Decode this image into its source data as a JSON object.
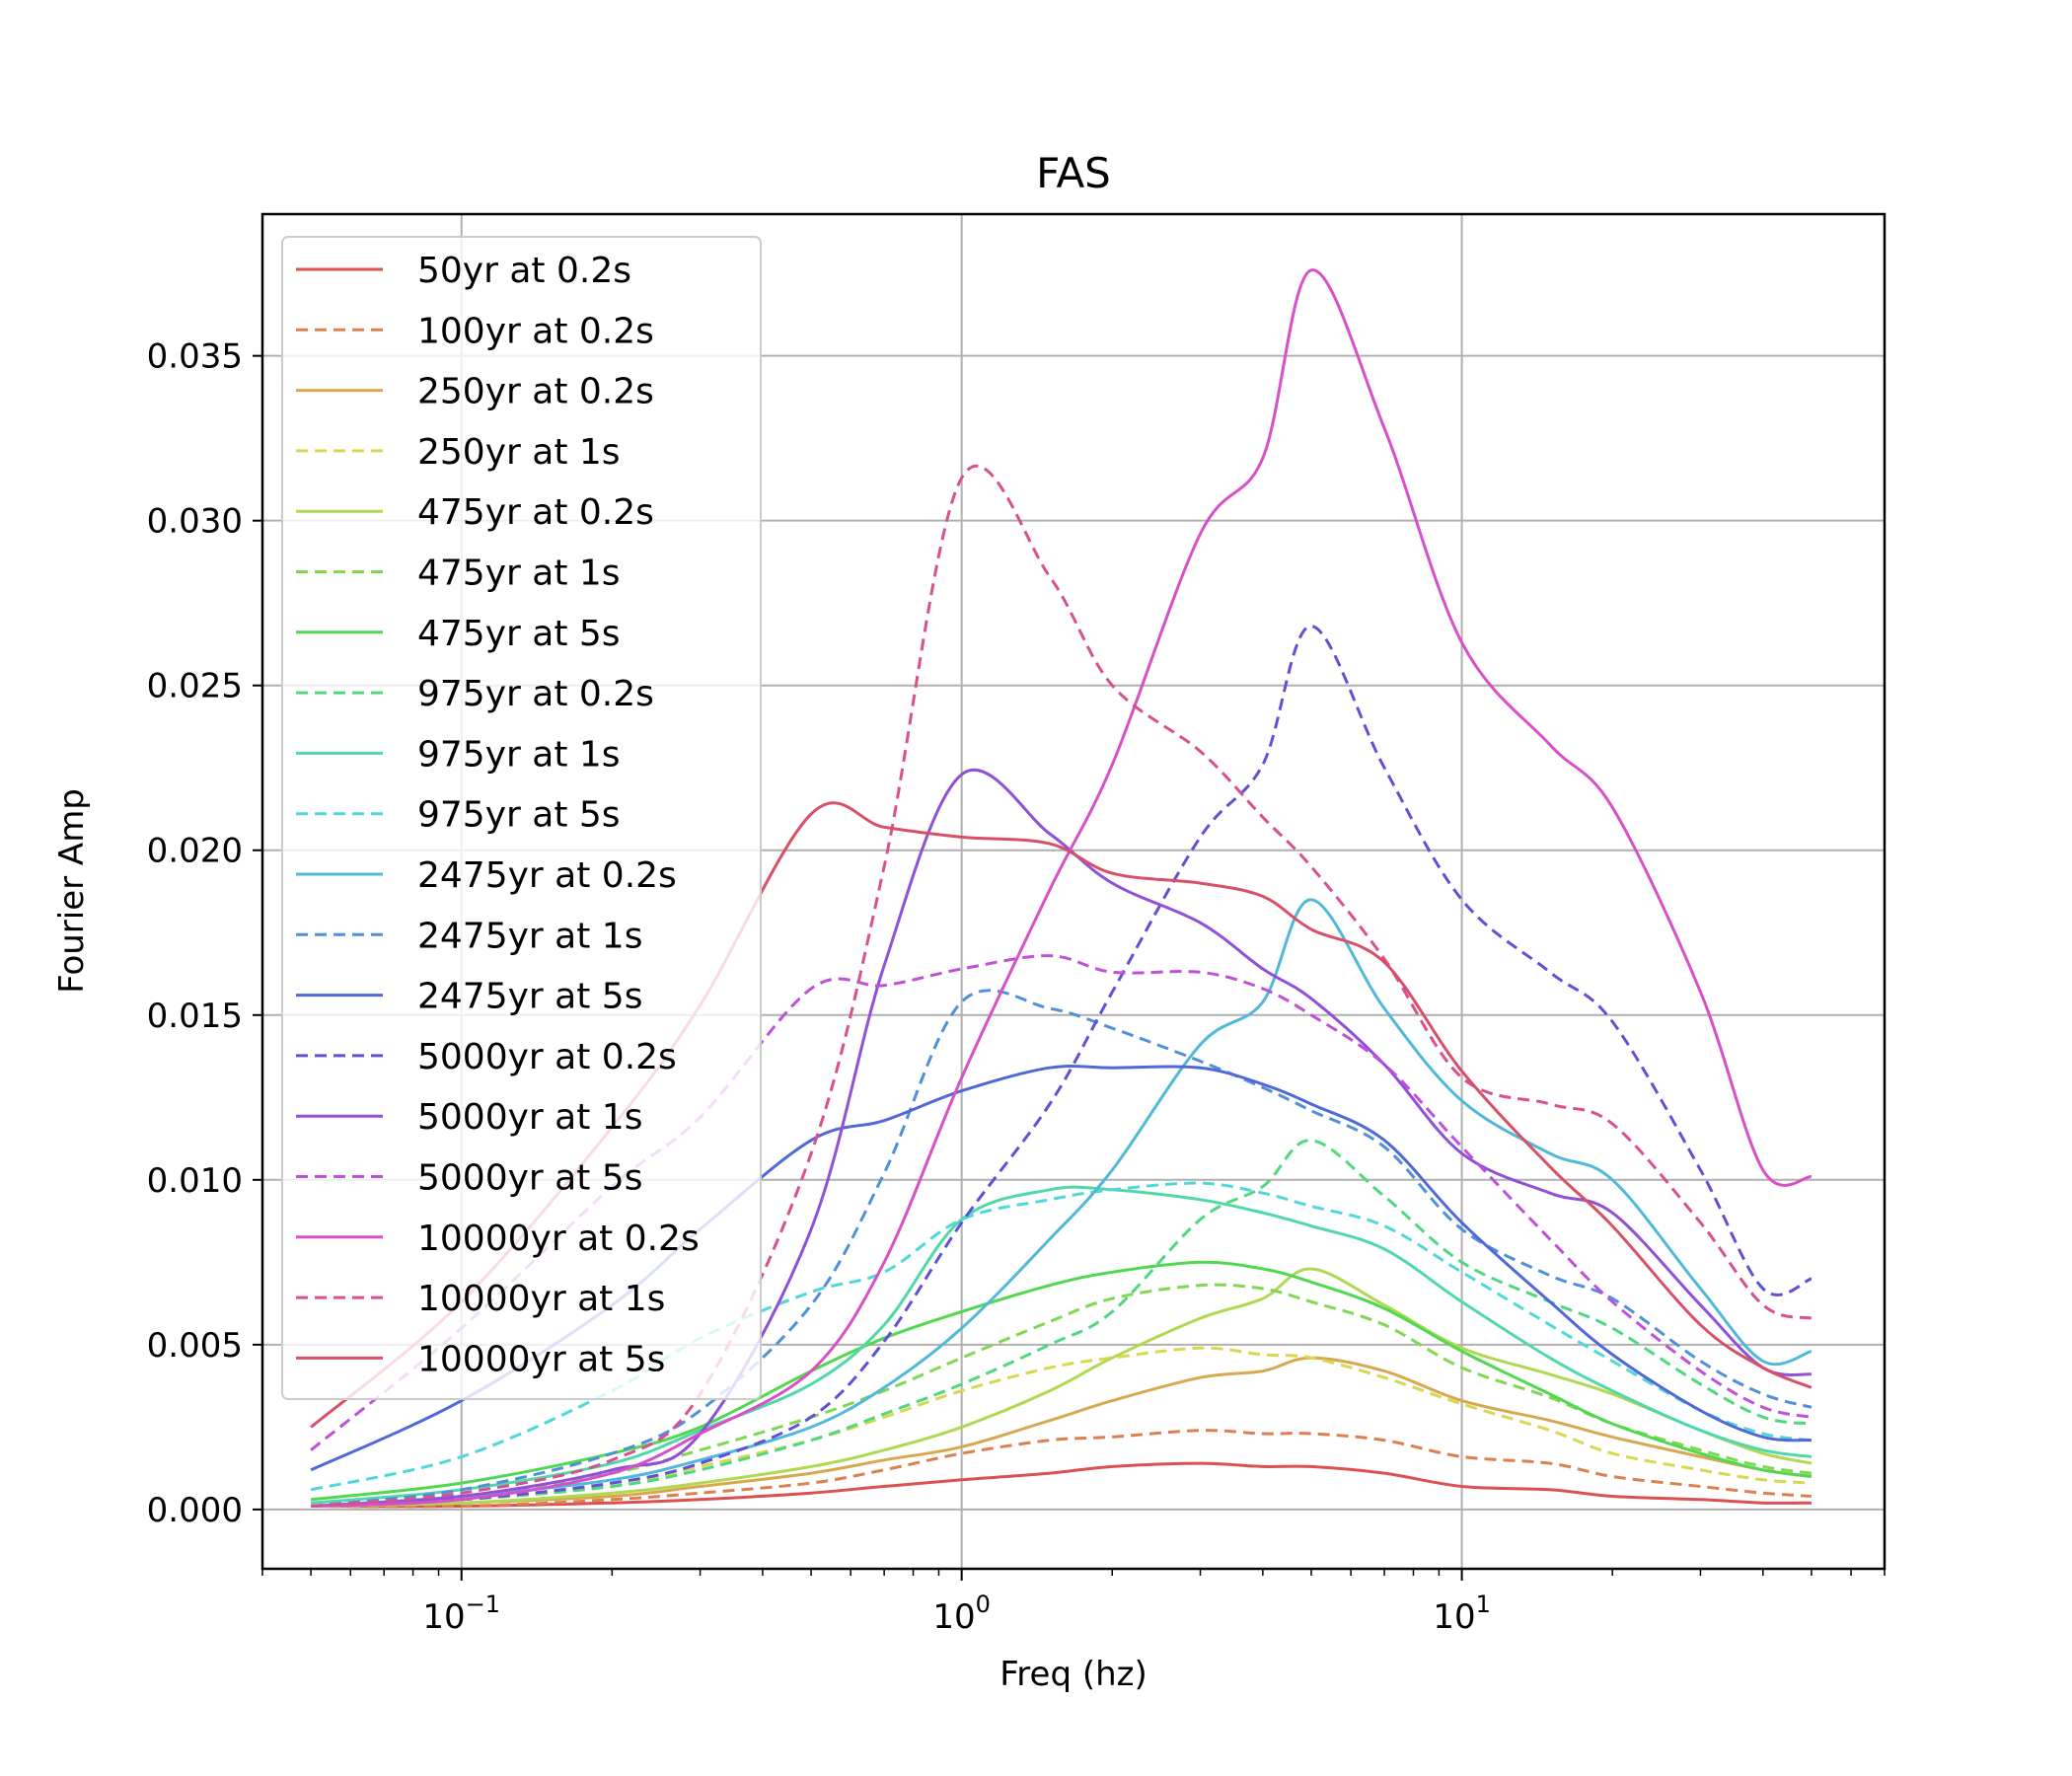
{
  "chart_data": {
    "type": "line",
    "title": "FAS",
    "xlabel": "Freq (hz)",
    "ylabel": "Fourier Amp",
    "xscale": "log",
    "xlim": [
      0.04,
      70
    ],
    "ylim": [
      -0.0018,
      0.0393
    ],
    "grid": true,
    "legend_position": "upper-left",
    "x_ticks": [
      {
        "value": 0.1,
        "base": "10",
        "exp": "−1"
      },
      {
        "value": 1,
        "base": "10",
        "exp": "0"
      },
      {
        "value": 10,
        "base": "10",
        "exp": "1"
      }
    ],
    "y_ticks": [
      {
        "value": 0,
        "label": "0.000"
      },
      {
        "value": 0.005,
        "label": "0.005"
      },
      {
        "value": 0.01,
        "label": "0.010"
      },
      {
        "value": 0.015,
        "label": "0.015"
      },
      {
        "value": 0.02,
        "label": "0.020"
      },
      {
        "value": 0.025,
        "label": "0.025"
      },
      {
        "value": 0.03,
        "label": "0.030"
      },
      {
        "value": 0.035,
        "label": "0.035"
      }
    ],
    "x": [
      0.05,
      0.1,
      0.2,
      0.3,
      0.5,
      0.7,
      1,
      1.5,
      2,
      3,
      4,
      5,
      7,
      10,
      15,
      20,
      30,
      40,
      50
    ],
    "series": [
      {
        "name": "50yr at 0.2s",
        "color": "#dc5050",
        "dash": false,
        "values": [
          0.0001,
          0.0001,
          0.0002,
          0.0003,
          0.0005,
          0.0007,
          0.0009,
          0.0011,
          0.0013,
          0.0014,
          0.0013,
          0.0013,
          0.0011,
          0.0007,
          0.0006,
          0.0004,
          0.0003,
          0.0002,
          0.0002
        ]
      },
      {
        "name": "100yr at 0.2s",
        "color": "#dc8050",
        "dash": true,
        "values": [
          0.0001,
          0.0001,
          0.0003,
          0.0005,
          0.0008,
          0.0012,
          0.0017,
          0.0021,
          0.0022,
          0.0024,
          0.0023,
          0.0023,
          0.0021,
          0.0016,
          0.0014,
          0.001,
          0.0007,
          0.0005,
          0.0004
        ]
      },
      {
        "name": "250yr at 0.2s",
        "color": "#d8a850",
        "dash": false,
        "values": [
          0.0001,
          0.0002,
          0.0004,
          0.0007,
          0.0011,
          0.0015,
          0.0019,
          0.0027,
          0.0033,
          0.004,
          0.0042,
          0.0046,
          0.0042,
          0.0033,
          0.0027,
          0.0022,
          0.0016,
          0.0012,
          0.001
        ]
      },
      {
        "name": "250yr at 1s",
        "color": "#d8d850",
        "dash": true,
        "values": [
          0.0001,
          0.0003,
          0.0007,
          0.0013,
          0.0021,
          0.0028,
          0.0036,
          0.0043,
          0.0046,
          0.0049,
          0.0047,
          0.0046,
          0.004,
          0.0032,
          0.0024,
          0.0017,
          0.0012,
          0.0009,
          0.0008
        ]
      },
      {
        "name": "475yr at 0.2s",
        "color": "#b0d850",
        "dash": false,
        "values": [
          0.0001,
          0.0002,
          0.0005,
          0.0008,
          0.0013,
          0.0018,
          0.0025,
          0.0036,
          0.0046,
          0.0058,
          0.0064,
          0.0073,
          0.0062,
          0.0049,
          0.0041,
          0.0035,
          0.0024,
          0.0017,
          0.0014
        ]
      },
      {
        "name": "475yr at 1s",
        "color": "#80d850",
        "dash": true,
        "values": [
          0.0001,
          0.0004,
          0.0011,
          0.0018,
          0.0028,
          0.0036,
          0.0046,
          0.0057,
          0.0064,
          0.0068,
          0.0067,
          0.0063,
          0.0056,
          0.0043,
          0.0034,
          0.0026,
          0.0018,
          0.0013,
          0.0011
        ]
      },
      {
        "name": "475yr at 5s",
        "color": "#50d850",
        "dash": false,
        "values": [
          0.0003,
          0.0008,
          0.0017,
          0.0025,
          0.0042,
          0.0052,
          0.006,
          0.0068,
          0.0072,
          0.0075,
          0.0073,
          0.0069,
          0.0061,
          0.0048,
          0.0035,
          0.0026,
          0.0017,
          0.0012,
          0.001
        ]
      },
      {
        "name": "975yr at 0.2s",
        "color": "#50d880",
        "dash": true,
        "values": [
          0.0001,
          0.0003,
          0.0007,
          0.0012,
          0.0021,
          0.0029,
          0.0038,
          0.005,
          0.006,
          0.0088,
          0.0098,
          0.0112,
          0.0095,
          0.0075,
          0.0063,
          0.0055,
          0.0038,
          0.0028,
          0.0026
        ]
      },
      {
        "name": "975yr at 1s",
        "color": "#50d8a8",
        "dash": false,
        "values": [
          0.0002,
          0.0006,
          0.0014,
          0.0024,
          0.0038,
          0.0056,
          0.0088,
          0.0097,
          0.0097,
          0.0094,
          0.009,
          0.0086,
          0.0079,
          0.0063,
          0.0046,
          0.0036,
          0.0024,
          0.0018,
          0.0016
        ]
      },
      {
        "name": "975yr at 5s",
        "color": "#50d8d8",
        "dash": true,
        "values": [
          0.0006,
          0.0016,
          0.0036,
          0.0052,
          0.0066,
          0.0072,
          0.0088,
          0.0094,
          0.0097,
          0.0099,
          0.0096,
          0.0092,
          0.0086,
          0.0072,
          0.0056,
          0.0045,
          0.003,
          0.0023,
          0.0021
        ]
      },
      {
        "name": "2475yr at 0.2s",
        "color": "#50b8d8",
        "dash": false,
        "values": [
          0.0001,
          0.0004,
          0.0009,
          0.0015,
          0.0025,
          0.0037,
          0.0055,
          0.0082,
          0.0103,
          0.0141,
          0.0154,
          0.0185,
          0.0152,
          0.0124,
          0.0108,
          0.01,
          0.0067,
          0.0045,
          0.0048
        ]
      },
      {
        "name": "2475yr at 1s",
        "color": "#5090d8",
        "dash": true,
        "values": [
          0.0001,
          0.0006,
          0.0017,
          0.003,
          0.0062,
          0.0102,
          0.0154,
          0.0152,
          0.0146,
          0.0136,
          0.0128,
          0.0121,
          0.011,
          0.0085,
          0.0071,
          0.0064,
          0.0045,
          0.0035,
          0.0031
        ]
      },
      {
        "name": "2475yr at 5s",
        "color": "#5068d8",
        "dash": false,
        "values": [
          0.0012,
          0.0033,
          0.0062,
          0.0085,
          0.0112,
          0.0118,
          0.0127,
          0.0134,
          0.0134,
          0.0134,
          0.0129,
          0.0123,
          0.0112,
          0.0087,
          0.0063,
          0.0047,
          0.003,
          0.0022,
          0.0021
        ]
      },
      {
        "name": "5000yr at 0.2s",
        "color": "#6050d8",
        "dash": true,
        "values": [
          0.0001,
          0.0003,
          0.0008,
          0.0014,
          0.0028,
          0.0051,
          0.0087,
          0.0123,
          0.0157,
          0.0204,
          0.0226,
          0.0268,
          0.0225,
          0.0185,
          0.0163,
          0.0148,
          0.0103,
          0.0067,
          0.007
        ]
      },
      {
        "name": "5000yr at 1s",
        "color": "#9050d8",
        "dash": false,
        "values": [
          0.0001,
          0.0004,
          0.0012,
          0.0023,
          0.0085,
          0.0165,
          0.0223,
          0.0205,
          0.019,
          0.0178,
          0.0164,
          0.0155,
          0.0135,
          0.0108,
          0.0096,
          0.009,
          0.0062,
          0.0043,
          0.0041
        ]
      },
      {
        "name": "5000yr at 5s",
        "color": "#c050d8",
        "dash": true,
        "values": [
          0.0018,
          0.0055,
          0.0098,
          0.0119,
          0.0158,
          0.0159,
          0.0164,
          0.0168,
          0.0163,
          0.0163,
          0.0158,
          0.015,
          0.0135,
          0.011,
          0.0082,
          0.0063,
          0.0042,
          0.0031,
          0.0028
        ]
      },
      {
        "name": "10000yr at 0.2s",
        "color": "#d850c8",
        "dash": false,
        "values": [
          0.0001,
          0.0003,
          0.0011,
          0.0023,
          0.0042,
          0.0075,
          0.0131,
          0.0188,
          0.0226,
          0.0296,
          0.0319,
          0.0376,
          0.0328,
          0.0263,
          0.0232,
          0.0213,
          0.0157,
          0.0103,
          0.0101
        ]
      },
      {
        "name": "10000yr at 1s",
        "color": "#d85090",
        "dash": true,
        "values": [
          0.0001,
          0.0005,
          0.0015,
          0.0035,
          0.0108,
          0.0195,
          0.0313,
          0.0283,
          0.025,
          0.023,
          0.021,
          0.0195,
          0.0167,
          0.0131,
          0.0123,
          0.0117,
          0.0087,
          0.0062,
          0.0058
        ]
      },
      {
        "name": "10000yr at 5s",
        "color": "#d85068",
        "dash": false,
        "values": [
          0.0025,
          0.0063,
          0.0116,
          0.0153,
          0.0211,
          0.0207,
          0.0204,
          0.0202,
          0.0193,
          0.019,
          0.0186,
          0.0176,
          0.0166,
          0.0133,
          0.0104,
          0.0086,
          0.0056,
          0.0043,
          0.0037
        ]
      }
    ]
  }
}
